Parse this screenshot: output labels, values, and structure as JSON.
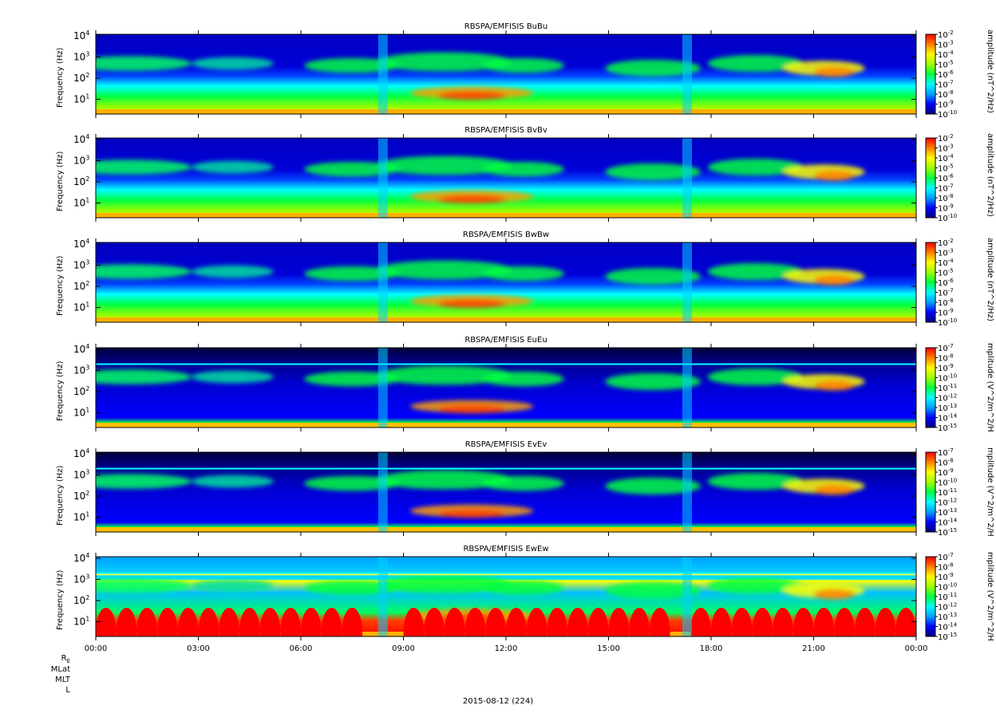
{
  "chart_data": {
    "type": "heatmap",
    "x_ticks": [
      "00:00",
      "03:00",
      "06:00",
      "09:00",
      "12:00",
      "15:00",
      "18:00",
      "21:00",
      "00:00"
    ],
    "x_range_hours": [
      0,
      24
    ],
    "y_scale": "log",
    "y_range_hz": [
      2,
      12000
    ],
    "y_ticks": [
      "10^1",
      "10^2",
      "10^3",
      "10^4"
    ],
    "date_label": "2015-08-12 (224)",
    "row_labels": [
      "R_E",
      "MLat",
      "MLT",
      "L"
    ],
    "colorscale": [
      "#00007f",
      "#0000ff",
      "#00a0ff",
      "#00ffff",
      "#00ff40",
      "#a0ff00",
      "#ffff00",
      "#ff8000",
      "#ff0000"
    ],
    "panels": [
      {
        "title": "RBSPA/EMFISIS  BuBu",
        "ylabel": "Frequency (Hz)",
        "cbar_label": "amplitude (nT^2/Hz)",
        "cbar_exp_range": [
          -10,
          -2
        ]
      },
      {
        "title": "RBSPA/EMFISIS  BvBv",
        "ylabel": "Frequency (Hz)",
        "cbar_label": "amplitude (nT^2/Hz)",
        "cbar_exp_range": [
          -10,
          -2
        ]
      },
      {
        "title": "RBSPA/EMFISIS  BwBw",
        "ylabel": "Frequency (Hz)",
        "cbar_label": "amplitude (nT^2/Hz)",
        "cbar_exp_range": [
          -10,
          -2
        ]
      },
      {
        "title": "RBSPA/EMFISIS  EuEu",
        "ylabel": "Frequency (Hz)",
        "cbar_label": "mplitude (V^2/m^2/H",
        "cbar_exp_range": [
          -15,
          -7
        ]
      },
      {
        "title": "RBSPA/EMFISIS  EvEv",
        "ylabel": "Frequency (Hz)",
        "cbar_label": "mplitude (V^2/m^2/H",
        "cbar_exp_range": [
          -15,
          -7
        ]
      },
      {
        "title": "RBSPA/EMFISIS  EwEw",
        "ylabel": "Frequency (Hz)",
        "cbar_label": "mplitude (V^2/m^2/H",
        "cbar_exp_range": [
          -15,
          -7
        ]
      }
    ]
  }
}
